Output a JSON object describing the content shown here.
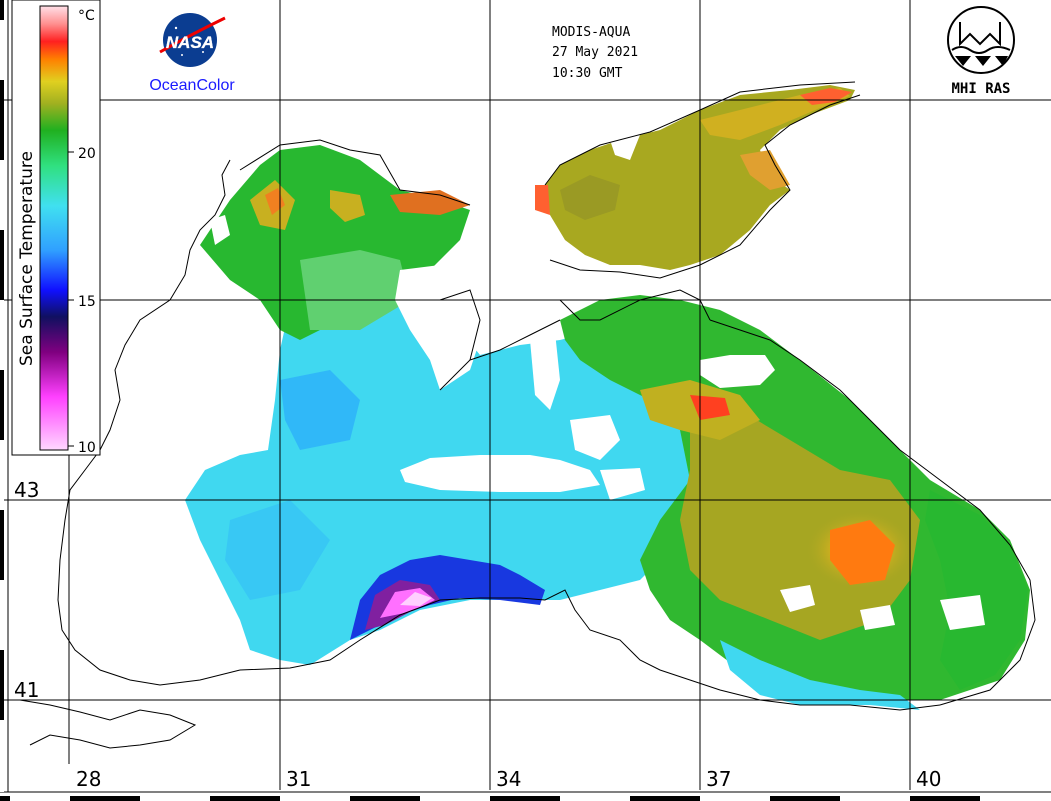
{
  "header": {
    "sensor": "MODIS-AQUA",
    "date": "27 May 2021",
    "time": "10:30 GMT"
  },
  "logos": {
    "nasa_text": "NASA",
    "oceancolor": "OceanColor",
    "mhi": "MHI RAS"
  },
  "colorbar": {
    "title": "Sea Surface Temperature",
    "unit": "°C",
    "ticks": [
      "20",
      "15",
      "10"
    ]
  },
  "axes": {
    "lon_labels": [
      "28",
      "31",
      "34",
      "37",
      "40"
    ],
    "lat_labels": [
      "43",
      "41"
    ]
  },
  "colors": {
    "cold_magenta": "#ff66ff",
    "cold_blue": "#1010c0",
    "cyan": "#30d0f0",
    "green": "#28b828",
    "yellow": "#c8c020",
    "orange": "#ff7010",
    "red": "#ff2020",
    "grid": "#000000"
  }
}
